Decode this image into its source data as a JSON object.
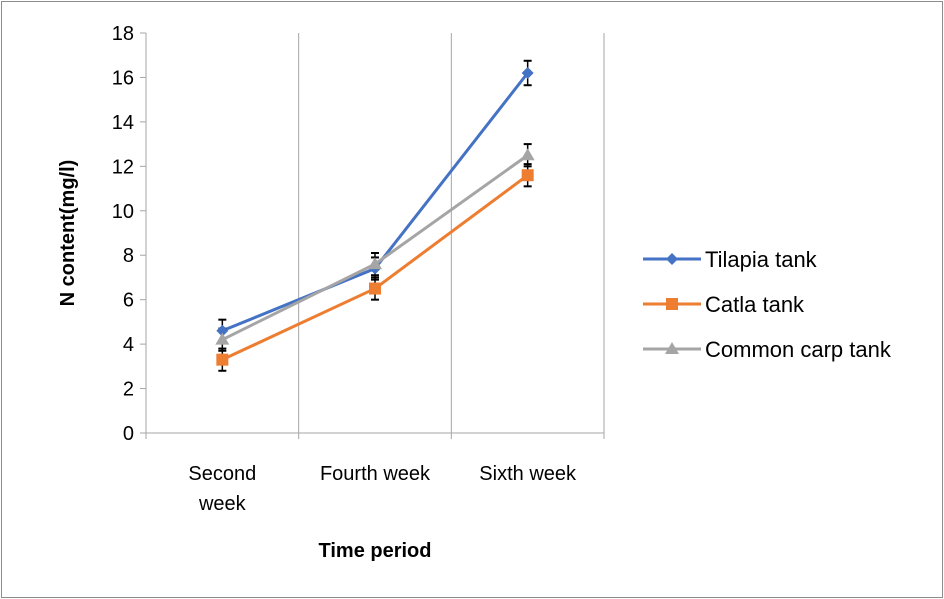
{
  "chart_data": {
    "type": "line",
    "title": "",
    "xlabel": "Time period",
    "ylabel": "N content(mg/l)",
    "categories": [
      [
        "Second",
        "week"
      ],
      [
        "Fourth week"
      ],
      [
        "Sixth week"
      ]
    ],
    "ylim": [
      0,
      18
    ],
    "yticks": [
      0,
      2,
      4,
      6,
      8,
      10,
      12,
      14,
      16,
      18
    ],
    "grid": "vertical",
    "legend_position": "right",
    "error_bars": true,
    "series": [
      {
        "name": "Tilapia tank",
        "values": [
          4.6,
          7.4,
          16.2
        ],
        "errors": [
          0.5,
          0.5,
          0.55
        ],
        "color": "#4472C4",
        "marker": "diamond"
      },
      {
        "name": "Catla tank",
        "values": [
          3.3,
          6.5,
          11.6
        ],
        "errors": [
          0.5,
          0.5,
          0.5
        ],
        "color": "#ED7D31",
        "marker": "square"
      },
      {
        "name": "Common carp tank",
        "values": [
          4.2,
          7.6,
          12.5
        ],
        "errors": [
          0.5,
          0.5,
          0.5
        ],
        "color": "#A5A5A5",
        "marker": "triangle"
      }
    ]
  }
}
